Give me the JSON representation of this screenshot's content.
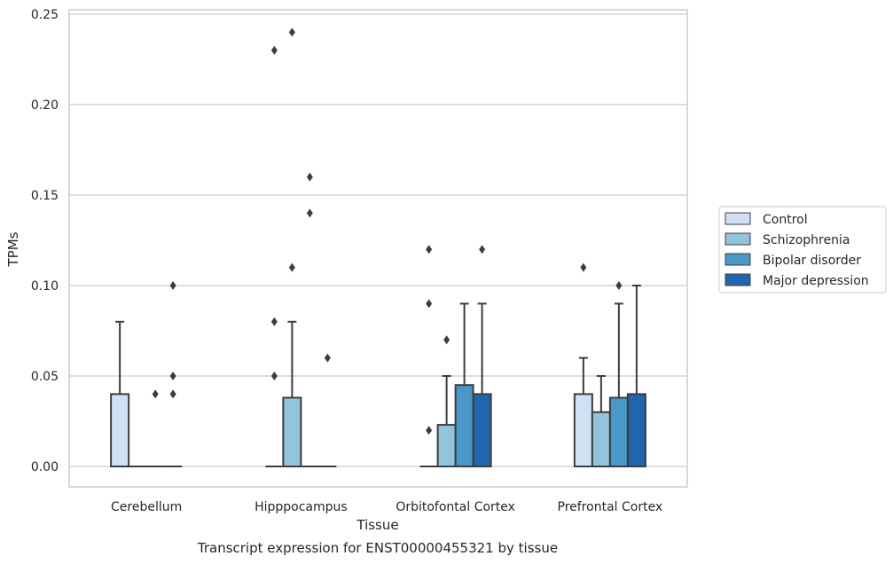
{
  "chart_data": {
    "type": "box",
    "title": "Transcript expression for ENST00000455321 by tissue",
    "xlabel": "Tissue",
    "ylabel": "TPMs",
    "ylim": [
      -0.012,
      0.253
    ],
    "yticks": [
      0.0,
      0.05,
      0.1,
      0.15,
      0.2,
      0.25
    ],
    "ytick_labels": [
      "0.00",
      "0.05",
      "0.10",
      "0.15",
      "0.20",
      "0.25"
    ],
    "grid": "horizontal",
    "legend_position": "right",
    "categories": [
      "Cerebellum",
      "Hipppocampus",
      "Orbitofontal Cortex",
      "Prefrontal Cortex"
    ],
    "series": [
      {
        "name": "Control",
        "color": "#cfe1f2",
        "boxes": [
          {
            "q1": 0.0,
            "median": 0.0,
            "q3": 0.04,
            "whisker_low": 0.0,
            "whisker_high": 0.08,
            "outliers": []
          },
          {
            "q1": 0.0,
            "median": 0.0,
            "q3": 0.0,
            "whisker_low": 0.0,
            "whisker_high": 0.0,
            "outliers": [
              0.05,
              0.08,
              0.23
            ]
          },
          {
            "q1": 0.0,
            "median": 0.0,
            "q3": 0.0,
            "whisker_low": 0.0,
            "whisker_high": 0.0,
            "outliers": [
              0.02,
              0.09,
              0.12
            ]
          },
          {
            "q1": 0.0,
            "median": 0.0,
            "q3": 0.04,
            "whisker_low": 0.0,
            "whisker_high": 0.06,
            "outliers": [
              0.11
            ]
          }
        ]
      },
      {
        "name": "Schizophrenia",
        "color": "#93c4de",
        "boxes": [
          {
            "q1": 0.0,
            "median": 0.0,
            "q3": 0.0,
            "whisker_low": 0.0,
            "whisker_high": 0.0,
            "outliers": []
          },
          {
            "q1": 0.0,
            "median": 0.0,
            "q3": 0.038,
            "whisker_low": 0.0,
            "whisker_high": 0.08,
            "outliers": [
              0.11,
              0.24
            ]
          },
          {
            "q1": 0.0,
            "median": 0.0,
            "q3": 0.023,
            "whisker_low": 0.0,
            "whisker_high": 0.05,
            "outliers": [
              0.07
            ]
          },
          {
            "q1": 0.0,
            "median": 0.0,
            "q3": 0.03,
            "whisker_low": 0.0,
            "whisker_high": 0.05,
            "outliers": []
          }
        ]
      },
      {
        "name": "Bipolar disorder",
        "color": "#4a98c9",
        "boxes": [
          {
            "q1": 0.0,
            "median": 0.0,
            "q3": 0.0,
            "whisker_low": 0.0,
            "whisker_high": 0.0,
            "outliers": [
              0.04
            ]
          },
          {
            "q1": 0.0,
            "median": 0.0,
            "q3": 0.0,
            "whisker_low": 0.0,
            "whisker_high": 0.0,
            "outliers": [
              0.14,
              0.16
            ]
          },
          {
            "q1": 0.0,
            "median": 0.0,
            "q3": 0.045,
            "whisker_low": 0.0,
            "whisker_high": 0.09,
            "outliers": []
          },
          {
            "q1": 0.0,
            "median": 0.0,
            "q3": 0.038,
            "whisker_low": 0.0,
            "whisker_high": 0.09,
            "outliers": [
              0.1
            ]
          }
        ]
      },
      {
        "name": "Major depression",
        "color": "#2166ac",
        "boxes": [
          {
            "q1": 0.0,
            "median": 0.0,
            "q3": 0.0,
            "whisker_low": 0.0,
            "whisker_high": 0.0,
            "outliers": [
              0.04,
              0.05,
              0.1
            ]
          },
          {
            "q1": 0.0,
            "median": 0.0,
            "q3": 0.0,
            "whisker_low": 0.0,
            "whisker_high": 0.0,
            "outliers": [
              0.06
            ]
          },
          {
            "q1": 0.0,
            "median": 0.0,
            "q3": 0.04,
            "whisker_low": 0.0,
            "whisker_high": 0.09,
            "outliers": [
              0.12
            ]
          },
          {
            "q1": 0.0,
            "median": 0.0,
            "q3": 0.04,
            "whisker_low": 0.0,
            "whisker_high": 0.1,
            "outliers": []
          }
        ]
      }
    ]
  }
}
